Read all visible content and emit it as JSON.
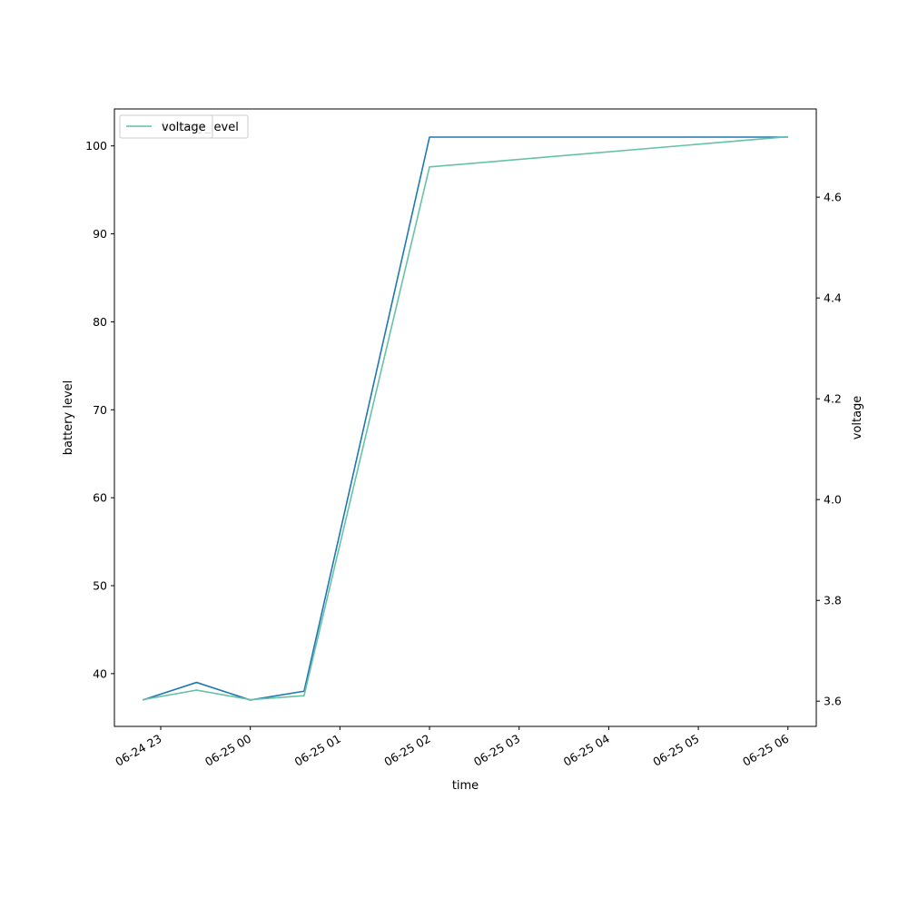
{
  "chart_data": {
    "type": "line",
    "title": "",
    "xlabel": "time",
    "ylabel": "battery level",
    "y2label": "voltage",
    "x": [
      "2023-06-24 22:48",
      "2023-06-24 23:24",
      "2023-06-25 00:00",
      "2023-06-25 00:36",
      "2023-06-25 02:00",
      "2023-06-25 06:00"
    ],
    "xlim": [
      "2023-06-24 22:29",
      "2023-06-25 06:19"
    ],
    "x_tick_labels": [
      "06-24 23",
      "06-25 00",
      "06-25 01",
      "06-25 02",
      "06-25 03",
      "06-25 04",
      "06-25 05",
      "06-25 06"
    ],
    "ylim": [
      34,
      104.2
    ],
    "y_ticks": [
      40,
      50,
      60,
      70,
      80,
      90,
      100
    ],
    "y2lim": [
      3.55,
      4.775
    ],
    "y2_ticks": [
      3.6,
      3.8,
      4.0,
      4.2,
      4.4,
      4.6
    ],
    "y2_tick_labels": [
      "3.6",
      "3.8",
      "4.0",
      "4.2",
      "4.4",
      "4.6"
    ],
    "series": [
      {
        "name": "battery_level",
        "axis": "left",
        "color": "#1f77b4",
        "values": [
          37,
          39,
          37,
          38,
          101,
          101
        ]
      },
      {
        "name": "voltage",
        "axis": "right",
        "color": "#66c2a5",
        "values": [
          3.603,
          3.622,
          3.603,
          3.611,
          4.66,
          4.72
        ]
      }
    ],
    "legend": {
      "placement": "top-left",
      "entries": [
        "battery_level",
        "voltage"
      ]
    },
    "grid": false
  }
}
